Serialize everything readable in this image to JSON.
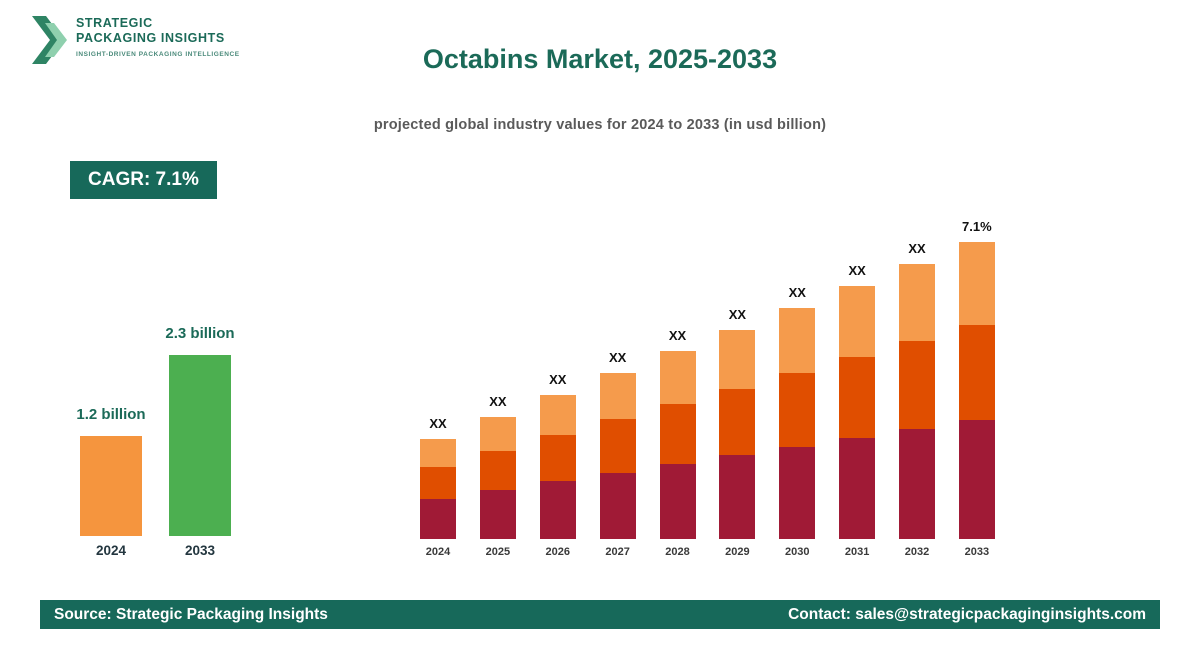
{
  "logo": {
    "line1": "STRATEGIC",
    "line2": "PACKAGING INSIGHTS",
    "tagline": "INSIGHT-DRIVEN PACKAGING INTELLIGENCE",
    "icon": "double-chevron-arrow",
    "colors": {
      "dark_green": "#2e8464",
      "light_green": "#8fd0ae"
    }
  },
  "header": {
    "title": "Octabins Market, 2025-2033",
    "subtitle": "projected global industry values for 2024 to 2033 (in usd billion)"
  },
  "cagr_badge": "CAGR: 7.1%",
  "chart_data": [
    {
      "type": "bar",
      "name": "endpoint-comparison",
      "categories": [
        "2024",
        "2033"
      ],
      "values": [
        1.2,
        2.3
      ],
      "value_labels": [
        "1.2 billion",
        "2.3 billion"
      ],
      "bar_colors": [
        "#F5953E",
        "#4CAF50"
      ],
      "unit": "usd billion",
      "legend": "none",
      "grid": false
    },
    {
      "type": "bar",
      "name": "yearly-stacked-projection",
      "stacked": true,
      "categories": [
        "2024",
        "2025",
        "2026",
        "2027",
        "2028",
        "2029",
        "2030",
        "2031",
        "2032",
        "2033"
      ],
      "bar_labels": [
        "XX",
        "XX",
        "XX",
        "XX",
        "XX",
        "XX",
        "XX",
        "XX",
        "XX",
        "7.1%"
      ],
      "segment_colors": [
        "#A01A36",
        "#E04E00",
        "#F59B4C"
      ],
      "segment_fractions": [
        0.4,
        0.32,
        0.28
      ],
      "known_values": {
        "2024": 1.2,
        "2033": 2.3
      },
      "cagr_percent": 7.1,
      "unit": "usd billion",
      "legend": "none",
      "grid": false,
      "axes": "hidden"
    }
  ],
  "footer": {
    "source": "Source: Strategic Packaging Insights",
    "contact": "Contact: sales@strategicpackaginginsights.com"
  },
  "colors": {
    "brand_green": "#17695a",
    "title_green": "#1b6a58",
    "stack_bottom": "#A01A36",
    "stack_middle": "#E04E00",
    "stack_top": "#F59B4C",
    "mini_orange": "#F5953E",
    "mini_green": "#4CAF50"
  }
}
